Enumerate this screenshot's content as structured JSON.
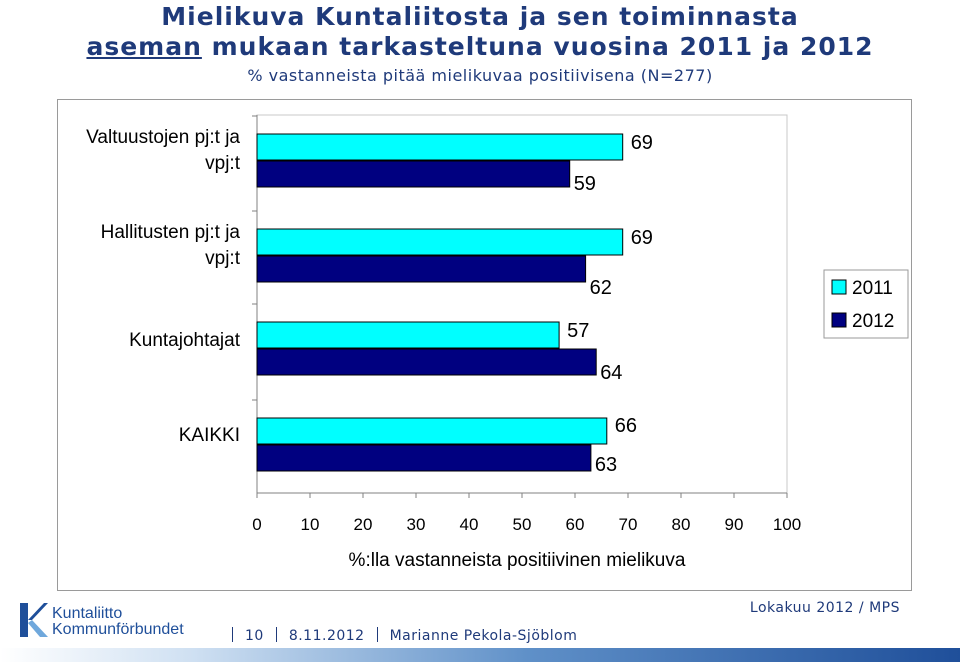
{
  "header": {
    "title_line1": "Mielikuva Kuntaliitosta ja sen toiminnasta",
    "title_line2_underlined": "aseman",
    "title_line2_rest": " mukaan tarkasteltuna vuosina 2011 ja 2012",
    "subtitle": "% vastanneista pitää mielikuvaa positiivisena (N=277)"
  },
  "chart_data": {
    "type": "bar",
    "orientation": "horizontal",
    "categories": [
      [
        "Valtuustojen pj:t ja",
        "vpj:t"
      ],
      [
        "Hallitusten pj:t ja",
        "vpj:t"
      ],
      [
        "Kuntajohtajat"
      ],
      [
        "KAIKKI"
      ]
    ],
    "series": [
      {
        "name": "2011",
        "values": [
          69,
          69,
          57,
          66
        ],
        "color": "#00ffff"
      },
      {
        "name": "2012",
        "values": [
          59,
          62,
          64,
          63
        ],
        "color": "#000080"
      }
    ],
    "xlim": [
      0,
      100
    ],
    "xticks": [
      0,
      10,
      20,
      30,
      40,
      50,
      60,
      70,
      80,
      90,
      100
    ],
    "xlabel": "%:lla vastanneista positiivinen mielikuva",
    "ylabel": "",
    "grid": false,
    "legend_position": "right"
  },
  "footer": {
    "logo_line1": "Kuntaliitto",
    "logo_line2": "Kommunförbundet",
    "date_right": "Lokakuu 2012 / MPS",
    "page_number": "10",
    "date": "8.11.2012",
    "author": "Marianne Pekola-Sjöblom"
  },
  "colors": {
    "title": "#1f3a7a",
    "brand_blue": "#1f4f9a"
  }
}
